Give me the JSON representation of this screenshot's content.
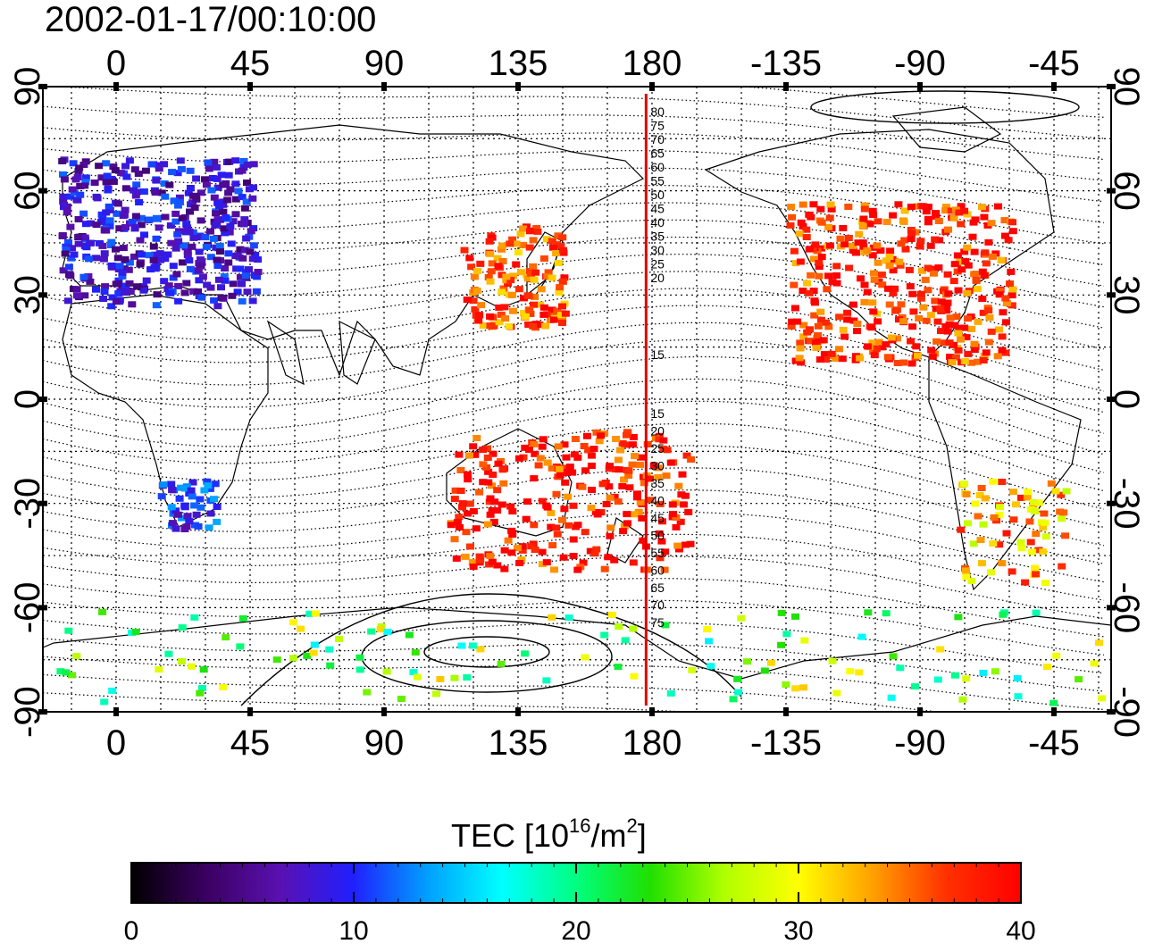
{
  "title": "2002-01-17/00:10:00",
  "top_ticks": [
    "0",
    "45",
    "90",
    "135",
    "180",
    "-135",
    "-90",
    "-45"
  ],
  "bottom_ticks": [
    "0",
    "45",
    "90",
    "135",
    "180",
    "-135",
    "-90",
    "-45"
  ],
  "left_ticks": [
    "90",
    "60",
    "30",
    "0",
    "-30",
    "-60",
    "-90"
  ],
  "right_ticks": [
    "90",
    "60",
    "30",
    "0",
    "-30",
    "-60",
    "-90"
  ],
  "lon_values": [
    0,
    45,
    90,
    135,
    180,
    225,
    270,
    315
  ],
  "lat_values": [
    90,
    60,
    30,
    0,
    -30,
    -60,
    -90
  ],
  "red_line_lon": 178,
  "contour_labels_north": [
    "80",
    "75",
    "70",
    "65",
    "60",
    "55",
    "50",
    "45",
    "40",
    "35",
    "30",
    "25",
    "20",
    "15"
  ],
  "contour_labels_south": [
    "15",
    "20",
    "25",
    "30",
    "35",
    "40",
    "45",
    "50",
    "55",
    "60",
    "65",
    "70",
    "75"
  ],
  "colorbar": {
    "title_main": "TEC  [10",
    "title_sup1": "16",
    "title_mid": "/m",
    "title_sup2": "2",
    "title_end": "]",
    "min": 0,
    "max": 40,
    "ticks": [
      "0",
      "10",
      "20",
      "30",
      "40"
    ],
    "colors": [
      "#000000",
      "#3a0060",
      "#5a10b0",
      "#2020ff",
      "#00a0ff",
      "#00ffff",
      "#00ff80",
      "#20e000",
      "#b0ff00",
      "#ffff00",
      "#ffa000",
      "#ff3000",
      "#ff0000"
    ]
  },
  "tec_regions": [
    {
      "region": "Europe",
      "tec": 8
    },
    {
      "region": "North America",
      "tec": 38
    },
    {
      "region": "Japan",
      "tec": 36
    },
    {
      "region": "Australia",
      "tec": 39
    },
    {
      "region": "South Africa",
      "tec": 10
    },
    {
      "region": "South America",
      "tec": 33
    },
    {
      "region": "Antarctica",
      "tec": 24
    }
  ]
}
